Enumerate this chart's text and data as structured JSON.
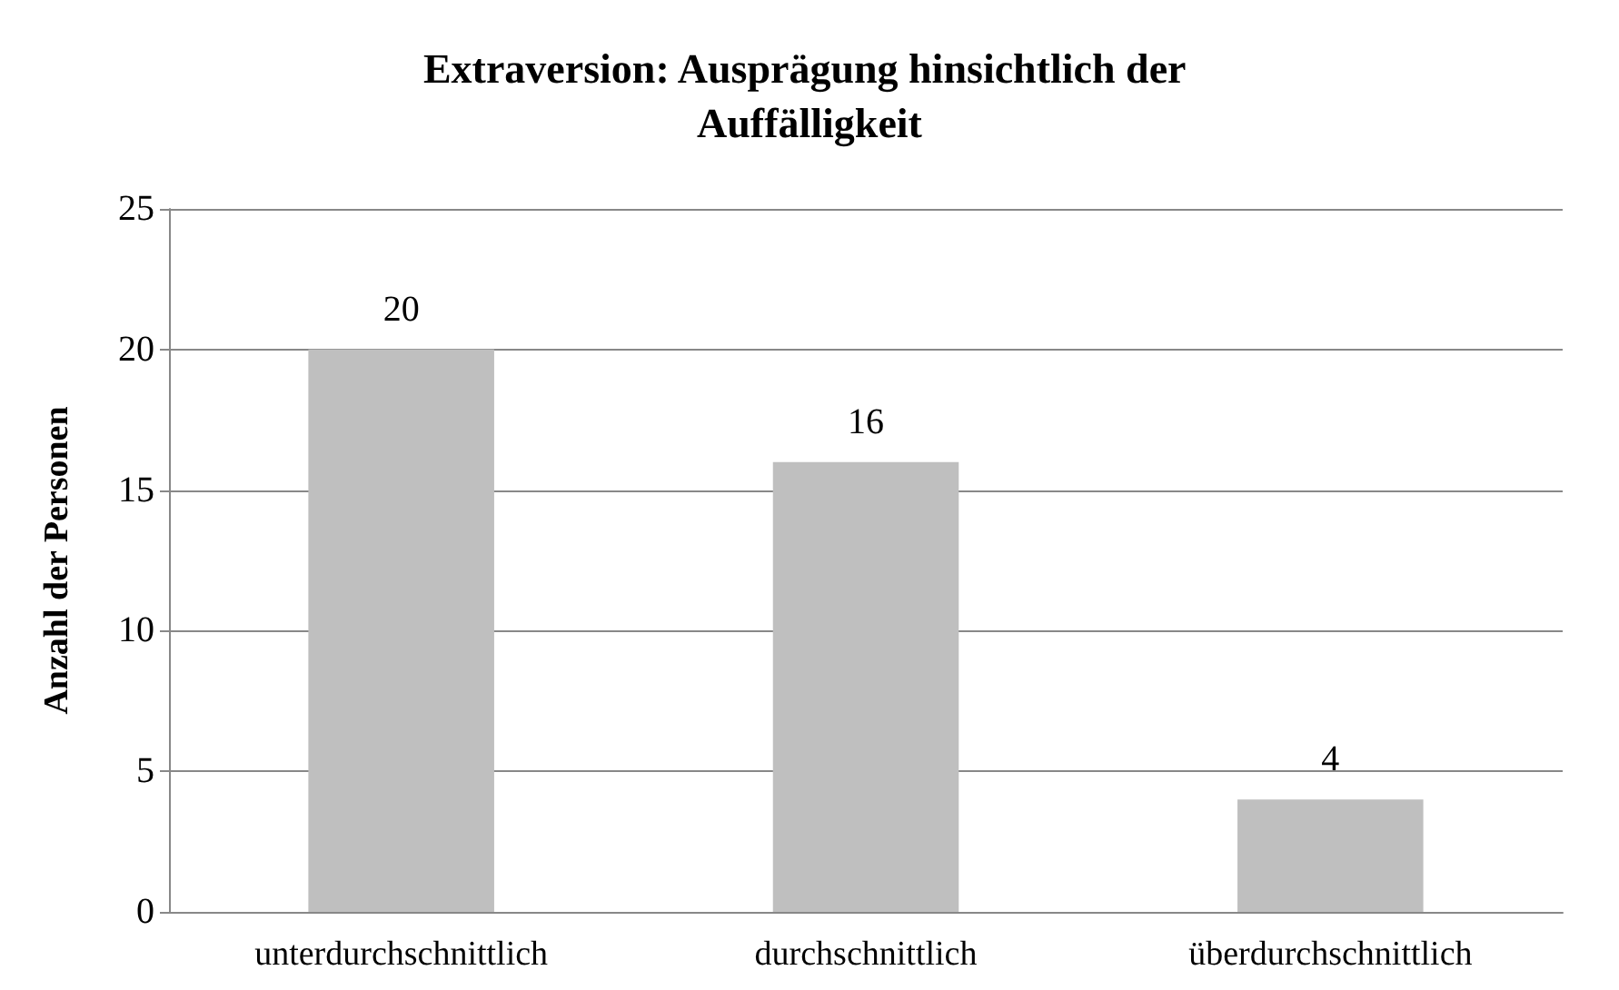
{
  "chart_data": {
    "type": "bar",
    "title": "Extraversion: Ausprägung hinsichtlich der Auffälligkeit",
    "ylabel": "Anzahl der Personen",
    "categories": [
      "unterdurchschnittlich",
      "durchschnittlich",
      "überdurchschnittlich"
    ],
    "values": [
      20,
      16,
      4
    ],
    "color": "#bfbfbf",
    "ylim": [
      0,
      25
    ],
    "yticks": [
      0,
      5,
      10,
      15,
      20,
      25
    ],
    "grid": "y",
    "data_labels": true
  }
}
